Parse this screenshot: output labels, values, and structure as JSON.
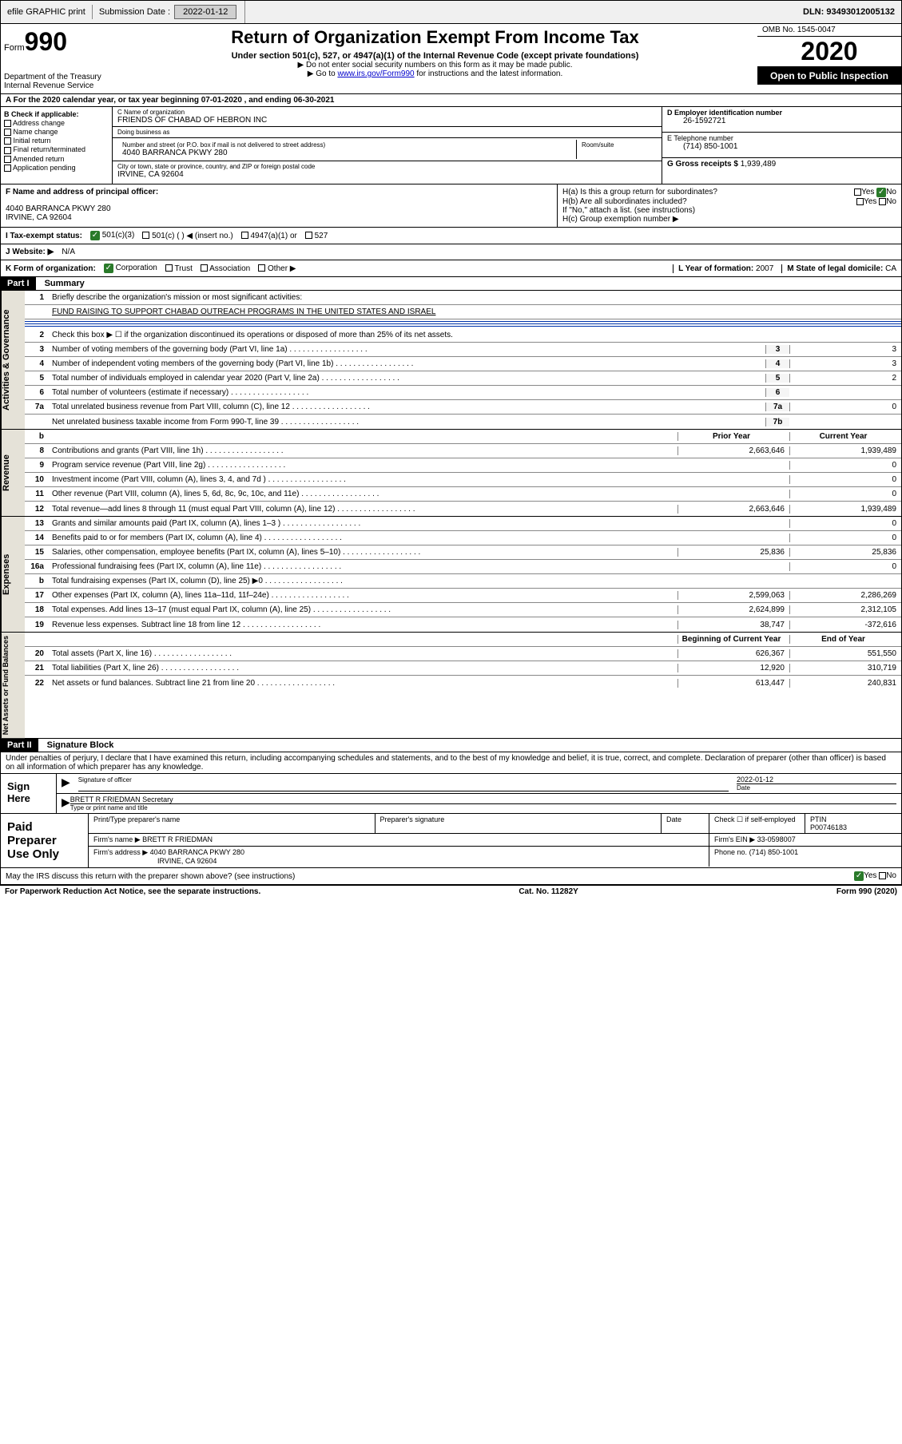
{
  "topbar": {
    "efile": "efile GRAPHIC print",
    "submission_label": "Submission Date :",
    "submission_date": "2022-01-12",
    "dln_label": "DLN:",
    "dln": "93493012005132"
  },
  "header": {
    "form_label": "Form",
    "form_num": "990",
    "dept": "Department of the Treasury",
    "irs": "Internal Revenue Service",
    "title": "Return of Organization Exempt From Income Tax",
    "subtitle": "Under section 501(c), 527, or 4947(a)(1) of the Internal Revenue Code (except private foundations)",
    "note1": "▶ Do not enter social security numbers on this form as it may be made public.",
    "note2_pre": "▶ Go to ",
    "note2_link": "www.irs.gov/Form990",
    "note2_post": " for instructions and the latest information.",
    "omb": "OMB No. 1545-0047",
    "year": "2020",
    "open": "Open to Public Inspection"
  },
  "row_a": "A For the 2020 calendar year, or tax year beginning 07-01-2020   , and ending 06-30-2021",
  "box_b": {
    "label": "B Check if applicable:",
    "opts": [
      "Address change",
      "Name change",
      "Initial return",
      "Final return/terminated",
      "Amended return",
      "Application pending"
    ]
  },
  "box_c": {
    "name_label": "C Name of organization",
    "name": "FRIENDS OF CHABAD OF HEBRON INC",
    "dba_label": "Doing business as",
    "dba": "",
    "street_label": "Number and street (or P.O. box if mail is not delivered to street address)",
    "room_label": "Room/suite",
    "street": "4040 BARRANCA PKWY 280",
    "city_label": "City or town, state or province, country, and ZIP or foreign postal code",
    "city": "IRVINE, CA  92604"
  },
  "box_d": {
    "ein_label": "D Employer identification number",
    "ein": "26-1592721",
    "phone_label": "E Telephone number",
    "phone": "(714) 850-1001",
    "gross_label": "G Gross receipts $",
    "gross": "1,939,489"
  },
  "box_f": {
    "label": "F  Name and address of principal officer:",
    "addr1": "4040 BARRANCA PKWY 280",
    "addr2": "IRVINE, CA  92604"
  },
  "box_h": {
    "ha": "H(a)  Is this a group return for subordinates?",
    "hb": "H(b)  Are all subordinates included?",
    "hb_note": "If \"No,\" attach a list. (see instructions)",
    "hc": "H(c)  Group exemption number ▶",
    "yes": "Yes",
    "no": "No"
  },
  "row_i": {
    "label": "I   Tax-exempt status:",
    "o1": "501(c)(3)",
    "o2": "501(c) (  ) ◀ (insert no.)",
    "o3": "4947(a)(1) or",
    "o4": "527"
  },
  "row_j": {
    "label": "J   Website: ▶",
    "val": "N/A"
  },
  "row_k": {
    "label": "K Form of organization:",
    "o1": "Corporation",
    "o2": "Trust",
    "o3": "Association",
    "o4": "Other ▶",
    "l_label": "L Year of formation:",
    "l_val": "2007",
    "m_label": "M State of legal domicile:",
    "m_val": "CA"
  },
  "part1": {
    "hdr": "Part I",
    "title": "Summary",
    "q1": "Briefly describe the organization's mission or most significant activities:",
    "q1v": "FUND RAISING TO SUPPORT CHABAD OUTREACH PROGRAMS IN THE UNITED STATES AND ISRAEL",
    "q2": "Check this box ▶ ☐  if the organization discontinued its operations or disposed of more than 25% of its net assets.",
    "lines": [
      {
        "n": "3",
        "d": "Number of voting members of the governing body (Part VI, line 1a)",
        "b": "3",
        "v": "3"
      },
      {
        "n": "4",
        "d": "Number of independent voting members of the governing body (Part VI, line 1b)",
        "b": "4",
        "v": "3"
      },
      {
        "n": "5",
        "d": "Total number of individuals employed in calendar year 2020 (Part V, line 2a)",
        "b": "5",
        "v": "2"
      },
      {
        "n": "6",
        "d": "Total number of volunteers (estimate if necessary)",
        "b": "6",
        "v": ""
      },
      {
        "n": "7a",
        "d": "Total unrelated business revenue from Part VIII, column (C), line 12",
        "b": "7a",
        "v": "0"
      },
      {
        "n": "",
        "d": "Net unrelated business taxable income from Form 990-T, line 39",
        "b": "7b",
        "v": ""
      }
    ],
    "col_prior": "Prior Year",
    "col_current": "Current Year",
    "revenue": [
      {
        "n": "8",
        "d": "Contributions and grants (Part VIII, line 1h)",
        "p": "2,663,646",
        "c": "1,939,489"
      },
      {
        "n": "9",
        "d": "Program service revenue (Part VIII, line 2g)",
        "p": "",
        "c": "0"
      },
      {
        "n": "10",
        "d": "Investment income (Part VIII, column (A), lines 3, 4, and 7d )",
        "p": "",
        "c": "0"
      },
      {
        "n": "11",
        "d": "Other revenue (Part VIII, column (A), lines 5, 6d, 8c, 9c, 10c, and 11e)",
        "p": "",
        "c": "0"
      },
      {
        "n": "12",
        "d": "Total revenue—add lines 8 through 11 (must equal Part VIII, column (A), line 12)",
        "p": "2,663,646",
        "c": "1,939,489"
      }
    ],
    "expenses": [
      {
        "n": "13",
        "d": "Grants and similar amounts paid (Part IX, column (A), lines 1–3 )",
        "p": "",
        "c": "0"
      },
      {
        "n": "14",
        "d": "Benefits paid to or for members (Part IX, column (A), line 4)",
        "p": "",
        "c": "0"
      },
      {
        "n": "15",
        "d": "Salaries, other compensation, employee benefits (Part IX, column (A), lines 5–10)",
        "p": "25,836",
        "c": "25,836"
      },
      {
        "n": "16a",
        "d": "Professional fundraising fees (Part IX, column (A), line 11e)",
        "p": "",
        "c": "0"
      },
      {
        "n": "b",
        "d": "Total fundraising expenses (Part IX, column (D), line 25) ▶0",
        "p": "gray",
        "c": "gray"
      },
      {
        "n": "17",
        "d": "Other expenses (Part IX, column (A), lines 11a–11d, 11f–24e)",
        "p": "2,599,063",
        "c": "2,286,269"
      },
      {
        "n": "18",
        "d": "Total expenses. Add lines 13–17 (must equal Part IX, column (A), line 25)",
        "p": "2,624,899",
        "c": "2,312,105"
      },
      {
        "n": "19",
        "d": "Revenue less expenses. Subtract line 18 from line 12",
        "p": "38,747",
        "c": "-372,616"
      }
    ],
    "col_begin": "Beginning of Current Year",
    "col_end": "End of Year",
    "netassets": [
      {
        "n": "20",
        "d": "Total assets (Part X, line 16)",
        "p": "626,367",
        "c": "551,550"
      },
      {
        "n": "21",
        "d": "Total liabilities (Part X, line 26)",
        "p": "12,920",
        "c": "310,719"
      },
      {
        "n": "22",
        "d": "Net assets or fund balances. Subtract line 21 from line 20",
        "p": "613,447",
        "c": "240,831"
      }
    ]
  },
  "part2": {
    "hdr": "Part II",
    "title": "Signature Block",
    "decl": "Under penalties of perjury, I declare that I have examined this return, including accompanying schedules and statements, and to the best of my knowledge and belief, it is true, correct, and complete. Declaration of preparer (other than officer) is based on all information of which preparer has any knowledge."
  },
  "sign": {
    "label": "Sign Here",
    "sig_label": "Signature of officer",
    "date_label": "Date",
    "date": "2022-01-12",
    "name": "BRETT R FRIEDMAN  Secretary",
    "name_label": "Type or print name and title"
  },
  "paid": {
    "label": "Paid Preparer Use Only",
    "h1": "Print/Type preparer's name",
    "h2": "Preparer's signature",
    "h3": "Date",
    "h4": "Check ☐ if self-employed",
    "h5_label": "PTIN",
    "h5": "P00746183",
    "firm_label": "Firm's name   ▶",
    "firm": "BRETT R FRIEDMAN",
    "ein_label": "Firm's EIN ▶",
    "ein": "33-0598007",
    "addr_label": "Firm's address ▶",
    "addr": "4040 BARRANCA PKWY 280",
    "addr2": "IRVINE, CA  92604",
    "phone_label": "Phone no.",
    "phone": "(714) 850-1001"
  },
  "discuss": "May the IRS discuss this return with the preparer shown above? (see instructions)",
  "footer": {
    "left": "For Paperwork Reduction Act Notice, see the separate instructions.",
    "mid": "Cat. No. 11282Y",
    "right": "Form 990 (2020)"
  }
}
